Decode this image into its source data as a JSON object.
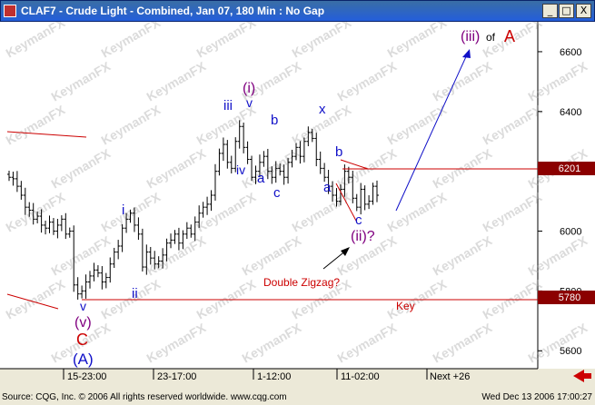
{
  "window": {
    "title": "CLAF7 - Crude Light - Combined, Jan 07, 180 Min : No Gap",
    "buttons": [
      "_",
      "□",
      "X"
    ]
  },
  "colors": {
    "titlebar": "#245edb",
    "wave_blue": "#1010c8",
    "wave_purple": "#800080",
    "wave_red": "#cc0000",
    "candles": "#000000",
    "price_tag_bg": "#8b0000",
    "watermark": "#b0b0b0"
  },
  "watermark_text": "KeymanFX",
  "chart_data": {
    "type": "candlestick",
    "y_axis": {
      "labels": [
        "6600",
        "6400",
        "6200",
        "6000",
        "5800",
        "5600"
      ],
      "ylim": [
        5540,
        6700
      ]
    },
    "x_axis": {
      "labels": [
        "15-23:00",
        "23-17:00",
        "1-12:00",
        "11-02:00",
        "Next +26"
      ]
    },
    "price_tags": [
      "6201",
      "5780"
    ],
    "horizontal_lines": {
      "resistance": 6201,
      "key_level": 5780
    },
    "close_path": [
      6180,
      6175,
      6150,
      6120,
      6080,
      6070,
      6040,
      6050,
      6020,
      6010,
      6030,
      6000,
      6020,
      6040,
      5990,
      6000,
      5820,
      5790,
      5800,
      5830,
      5850,
      5870,
      5860,
      5830,
      5845,
      5890,
      5930,
      5950,
      6010,
      6040,
      6060,
      6020,
      5990,
      5880,
      5930,
      5910,
      5890,
      5900,
      5920,
      5960,
      5970,
      5990,
      5960,
      5990,
      6010,
      5990,
      6030,
      6060,
      6080,
      6090,
      6120,
      6200,
      6260,
      6290,
      6230,
      6210,
      6300,
      6350,
      6280,
      6240,
      6180,
      6200,
      6230,
      6250,
      6200,
      6180,
      6210,
      6200,
      6180,
      6230,
      6250,
      6280,
      6250,
      6300,
      6330,
      6310,
      6240,
      6210,
      6180,
      6150,
      6120,
      6100,
      6140,
      6200,
      6180,
      6110,
      6080,
      6140,
      6090,
      6100,
      6150,
      6120
    ],
    "annotations": {
      "wave_iii_top": "(iii)",
      "of_text": "of",
      "of_a": "A",
      "wave_i_paren": "(i)",
      "wave_iii_small": "iii",
      "wave_v_small": "v",
      "wave_iv_small": "iv",
      "wave_a1": "a",
      "wave_b1": "b",
      "wave_c1": "c",
      "wave_x": "x",
      "wave_b2": "b",
      "wave_a2": "a",
      "wave_c2": "c",
      "wave_ii_q": "(ii)?",
      "double_zigzag": "Double Zigzag?",
      "key_label": "Key",
      "wave_i_small": "i",
      "wave_ii_small": "ii",
      "wave_v_low": "v",
      "wave_v_paren": "(v)",
      "wave_C": "C",
      "wave_A_paren": "(A)"
    }
  },
  "footer": {
    "source": "Source: CQG, Inc. © 2006 All rights reserved worldwide. www.cqg.com",
    "timestamp": "Wed Dec 13 2006 17:00:27"
  }
}
